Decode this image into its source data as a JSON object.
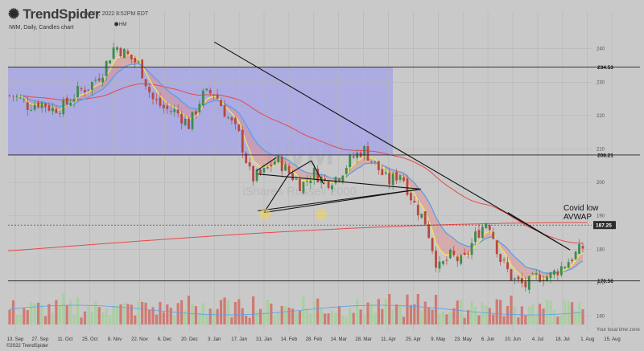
{
  "header": {
    "brand": "TrendSpider",
    "timestamp": "Jul 29, 2022 8:52PM EDT",
    "subtitle": "IWM, Daily, Candles chart",
    "marker_label": "HM",
    "copyright": "©2022 TrendSpider",
    "timeframe_label": "Your local time zone"
  },
  "colors": {
    "background": "#c9c9c9",
    "zone_fill": "#a7a6e6",
    "candle_up": "#3f8a4e",
    "candle_down": "#b9473f",
    "volume_up": "#a8d0a0",
    "volume_down": "#cf7a72",
    "ma_fast": "#f2e55a",
    "ma_mid": "#5aa0e8",
    "ma_slow": "#e84a4a",
    "trendline": "#111111"
  },
  "chart_data": {
    "type": "candlestick",
    "symbol": "IWM",
    "interval": "Daily",
    "x_ticks": [
      "13. Sep",
      "27. Sep",
      "11. Oct",
      "25. Oct",
      "8. Nov",
      "22. Nov",
      "6. Dec",
      "20. Dec",
      "3. Jan",
      "17. Jan",
      "31. Jan",
      "14. Feb",
      "28. Feb",
      "14. Mar",
      "28. Mar",
      "11. Apr",
      "25. Apr",
      "9. May",
      "23. May",
      "6. Jun",
      "20. Jun",
      "4. Jul",
      "18. Jul",
      "1. Aug",
      "15. Aug"
    ],
    "y_ticks": [
      240,
      230,
      220,
      210,
      200,
      190,
      180,
      170,
      160
    ],
    "ylim": [
      157.5,
      244
    ],
    "levels": [
      {
        "value": 234.53,
        "label": "234.53"
      },
      {
        "value": 208.21,
        "label": "208.21"
      },
      {
        "value": 170.56,
        "label": "170.56"
      }
    ],
    "current_price": {
      "value": 187.25,
      "label": "187.25"
    },
    "annotation": {
      "line1": "Covid low",
      "line2": "AVWAP"
    },
    "watermark": {
      "big": "IWM",
      "small": "iShares Russell 2000"
    },
    "price_path": [
      [
        "13. Sep",
        226
      ],
      [
        "20. Sep",
        223
      ],
      [
        "27. Sep",
        224
      ],
      [
        "4. Oct",
        222
      ],
      [
        "11. Oct",
        223
      ],
      [
        "18. Oct",
        227
      ],
      [
        "25. Oct",
        229
      ],
      [
        "1. Nov",
        233
      ],
      [
        "8. Nov",
        241
      ],
      [
        "15. Nov",
        238
      ],
      [
        "22. Nov",
        235
      ],
      [
        "29. Nov",
        225
      ],
      [
        "6. Dec",
        222
      ],
      [
        "13. Dec",
        221
      ],
      [
        "20. Dec",
        217
      ],
      [
        "27. Dec",
        226
      ],
      [
        "3. Jan",
        227
      ],
      [
        "10. Jan",
        220
      ],
      [
        "17. Jan",
        214
      ],
      [
        "24. Jan",
        201
      ],
      [
        "31. Jan",
        203
      ],
      [
        "7. Feb",
        207
      ],
      [
        "14. Feb",
        203
      ],
      [
        "21. Feb",
        199
      ],
      [
        "28. Feb",
        203
      ],
      [
        "7. Mar",
        200
      ],
      [
        "14. Mar",
        202
      ],
      [
        "21. Mar",
        207
      ],
      [
        "28. Mar",
        210
      ],
      [
        "4. Apr",
        205
      ],
      [
        "11. Apr",
        200
      ],
      [
        "18. Apr",
        203
      ],
      [
        "25. Apr",
        194
      ],
      [
        "2. May",
        188
      ],
      [
        "9. May",
        174
      ],
      [
        "16. May",
        178
      ],
      [
        "23. May",
        176
      ],
      [
        "30. May",
        184
      ],
      [
        "6. Jun",
        189
      ],
      [
        "13. Jun",
        177
      ],
      [
        "20. Jun",
        171
      ],
      [
        "27. Jun",
        169
      ],
      [
        "4. Jul",
        172
      ],
      [
        "11. Jul",
        172
      ],
      [
        "18. Jul",
        175
      ],
      [
        "25. Jul",
        181
      ],
      [
        "29. Jul",
        187
      ]
    ]
  }
}
